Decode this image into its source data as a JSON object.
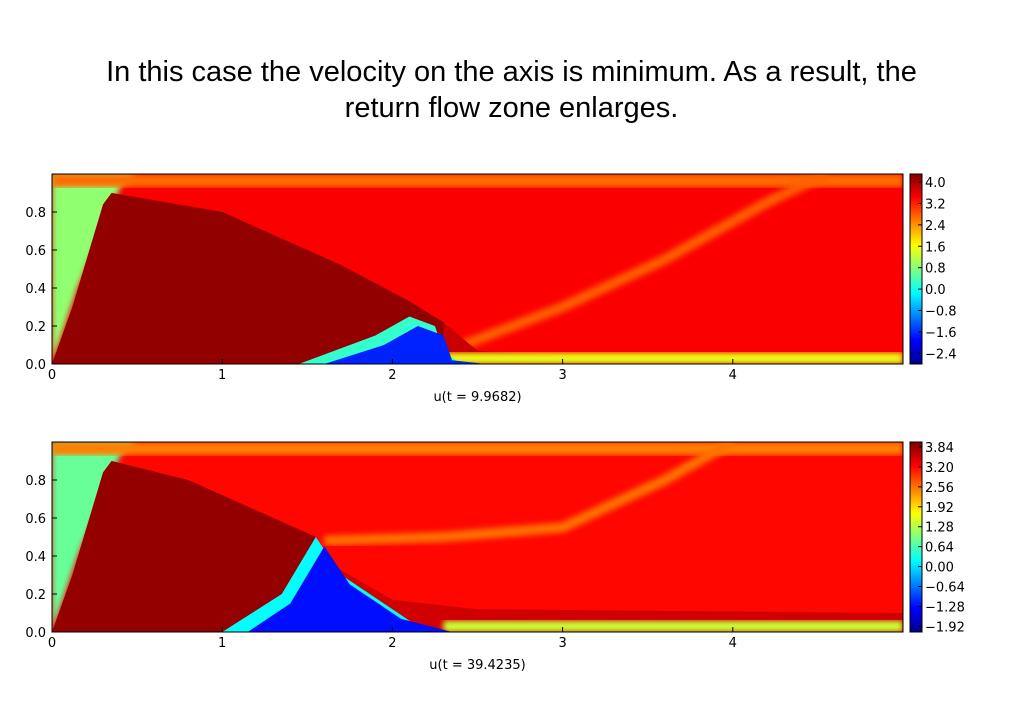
{
  "slide": {
    "title_line1": "In this case the velocity on the axis is minimum. As a result, the",
    "title_line2": "return flow zone enlarges."
  },
  "chart_data": [
    {
      "type": "heatmap",
      "caption": "u(t = 9.9682)",
      "xlim": [
        0,
        5
      ],
      "ylim": [
        0,
        1
      ],
      "x_ticks": [
        "0",
        "1",
        "2",
        "3",
        "4"
      ],
      "y_ticks": [
        "0.0",
        "0.2",
        "0.4",
        "0.6",
        "0.8"
      ],
      "colorbar": {
        "colormap": "jet",
        "range": [
          -2.8,
          4.3
        ],
        "ticks": [
          4.0,
          3.2,
          2.4,
          1.6,
          0.8,
          0.0,
          -0.8,
          -1.6,
          -2.4
        ],
        "tick_labels": [
          "4.0",
          "3.2",
          "2.4",
          "1.6",
          "0.8",
          "0.0",
          "−0.8",
          "−1.6",
          "−2.4"
        ]
      },
      "features": {
        "jet_shock_region_boundary": [
          [
            0,
            0
          ],
          [
            0.12,
            0.3
          ],
          [
            0.3,
            0.84
          ],
          [
            0.35,
            0.9
          ],
          [
            1.0,
            0.8
          ],
          [
            1.7,
            0.52
          ],
          [
            2.1,
            0.33
          ],
          [
            2.3,
            0.22
          ],
          [
            2.5,
            0.07
          ],
          [
            3.0,
            0.04
          ],
          [
            5.0,
            0.04
          ]
        ],
        "return_flow_zone": [
          [
            1.45,
            0
          ],
          [
            1.9,
            0.15
          ],
          [
            2.1,
            0.25
          ],
          [
            2.25,
            0.2
          ],
          [
            2.3,
            0.07
          ],
          [
            2.4,
            0
          ]
        ],
        "reflected_wave": [
          [
            2.3,
            0.06
          ],
          [
            3.0,
            0.3
          ],
          [
            3.6,
            0.55
          ],
          [
            4.2,
            0.85
          ],
          [
            4.55,
            1.0
          ]
        ],
        "max_value": 4.3,
        "min_value": -2.8
      }
    },
    {
      "type": "heatmap",
      "caption": "u(t = 39.4235)",
      "xlim": [
        0,
        5
      ],
      "ylim": [
        0,
        1
      ],
      "x_ticks": [
        "0",
        "1",
        "2",
        "3",
        "4"
      ],
      "y_ticks": [
        "0.0",
        "0.2",
        "0.4",
        "0.6",
        "0.8"
      ],
      "colorbar": {
        "colormap": "jet",
        "range": [
          -2.1,
          4.0
        ],
        "ticks": [
          3.84,
          3.2,
          2.56,
          1.92,
          1.28,
          0.64,
          0.0,
          -0.64,
          -1.28,
          -1.92
        ],
        "tick_labels": [
          "3.84",
          "3.20",
          "2.56",
          "1.92",
          "1.28",
          "0.64",
          "0.00",
          "−0.64",
          "−1.28",
          "−1.92"
        ]
      },
      "features": {
        "jet_shock_region_boundary": [
          [
            0,
            0
          ],
          [
            0.12,
            0.3
          ],
          [
            0.3,
            0.84
          ],
          [
            0.35,
            0.9
          ],
          [
            0.8,
            0.8
          ],
          [
            1.3,
            0.6
          ],
          [
            1.55,
            0.5
          ],
          [
            1.65,
            0.35
          ],
          [
            2.0,
            0.17
          ],
          [
            2.5,
            0.12
          ],
          [
            5.0,
            0.1
          ]
        ],
        "return_flow_zone": [
          [
            1.0,
            0
          ],
          [
            1.35,
            0.2
          ],
          [
            1.55,
            0.5
          ],
          [
            1.7,
            0.3
          ],
          [
            2.0,
            0.12
          ],
          [
            2.2,
            0
          ]
        ],
        "reflected_wave": [
          [
            1.6,
            0.48
          ],
          [
            2.3,
            0.5
          ],
          [
            3.0,
            0.55
          ],
          [
            3.6,
            0.8
          ],
          [
            4.0,
            1.0
          ]
        ],
        "max_value": 4.0,
        "min_value": -2.1
      }
    }
  ]
}
